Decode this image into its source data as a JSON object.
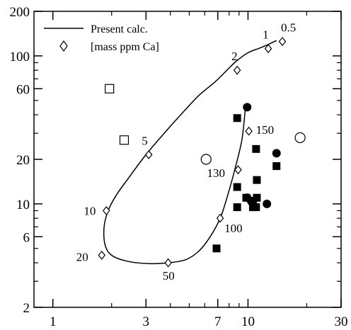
{
  "chart_data": {
    "type": "scatter",
    "title": "",
    "xlabel": "",
    "ylabel": "",
    "x_scale": "log",
    "y_scale": "log",
    "xlim": [
      0.8,
      30
    ],
    "ylim": [
      2,
      200
    ],
    "x_ticks": [
      1,
      3,
      7,
      10,
      30
    ],
    "x_tick_labels": [
      "1",
      "3",
      "7",
      "10",
      "30"
    ],
    "y_ticks": [
      2,
      6,
      10,
      20,
      60,
      100,
      200
    ],
    "y_tick_labels": [
      "2",
      "6",
      "10",
      "20",
      "60",
      "100",
      "200"
    ],
    "grid": false,
    "legend": {
      "placement": "top-left",
      "entries": [
        {
          "symbol": "line",
          "label": "Present calc."
        },
        {
          "symbol": "open-diamond",
          "label": "[mass ppm Ca]"
        }
      ]
    },
    "series": [
      {
        "name": "Present calc.",
        "kind": "curve",
        "x": [
          9.7,
          9.3,
          8.5,
          7.8,
          7.2,
          6.4,
          5.6,
          4.8,
          3.9,
          3.1,
          2.4,
          2.0,
          1.85,
          1.83,
          1.92,
          2.1,
          2.4,
          3.0,
          3.8,
          4.6,
          5.6,
          6.8,
          7.8,
          8.7,
          10.0,
          11.5,
          12.8,
          14.0
        ],
        "y": [
          45,
          27,
          16.5,
          11.0,
          8.0,
          6.0,
          4.8,
          4.2,
          4.0,
          3.95,
          4.1,
          4.5,
          5.3,
          7.0,
          9.0,
          11.3,
          14.5,
          21.5,
          31,
          41,
          54,
          67,
          80,
          92,
          105,
          113,
          120,
          127
        ]
      },
      {
        "name": "[mass ppm Ca]",
        "kind": "open-diamond",
        "points": [
          {
            "x": 1.78,
            "y": 4.5,
            "label": "20"
          },
          {
            "x": 1.88,
            "y": 9.0,
            "label": "10"
          },
          {
            "x": 3.1,
            "y": 21.5,
            "label": "5"
          },
          {
            "x": 3.9,
            "y": 4.0,
            "label": "50"
          },
          {
            "x": 7.2,
            "y": 8.0,
            "label": "100"
          },
          {
            "x": 8.9,
            "y": 17.0,
            "label": "130"
          },
          {
            "x": 10.1,
            "y": 31.0,
            "label": "150"
          },
          {
            "x": 8.8,
            "y": 80.0,
            "label": "2"
          },
          {
            "x": 12.7,
            "y": 112.0,
            "label": "1"
          },
          {
            "x": 15.0,
            "y": 125.0,
            "label": "0.5"
          }
        ]
      },
      {
        "name": "",
        "kind": "open-square",
        "points": [
          {
            "x": 1.95,
            "y": 60
          },
          {
            "x": 2.32,
            "y": 27
          }
        ]
      },
      {
        "name": "",
        "kind": "open-circle",
        "points": [
          {
            "x": 6.1,
            "y": 20
          },
          {
            "x": 18.5,
            "y": 28
          }
        ]
      },
      {
        "name": "",
        "kind": "filled-square",
        "points": [
          {
            "x": 8.8,
            "y": 38
          },
          {
            "x": 11.0,
            "y": 23.5
          },
          {
            "x": 14.0,
            "y": 18
          },
          {
            "x": 11.1,
            "y": 14.5
          },
          {
            "x": 8.8,
            "y": 13
          },
          {
            "x": 9.8,
            "y": 11
          },
          {
            "x": 10.6,
            "y": 10.5
          },
          {
            "x": 11.1,
            "y": 11
          },
          {
            "x": 8.8,
            "y": 9.5
          },
          {
            "x": 10.6,
            "y": 9.5
          },
          {
            "x": 11.0,
            "y": 9.5
          },
          {
            "x": 6.9,
            "y": 5
          }
        ]
      },
      {
        "name": "",
        "kind": "filled-circle",
        "points": [
          {
            "x": 9.9,
            "y": 45
          },
          {
            "x": 14.0,
            "y": 22
          },
          {
            "x": 9.9,
            "y": 11
          },
          {
            "x": 10.4,
            "y": 10.4
          },
          {
            "x": 12.5,
            "y": 10
          }
        ]
      }
    ]
  }
}
